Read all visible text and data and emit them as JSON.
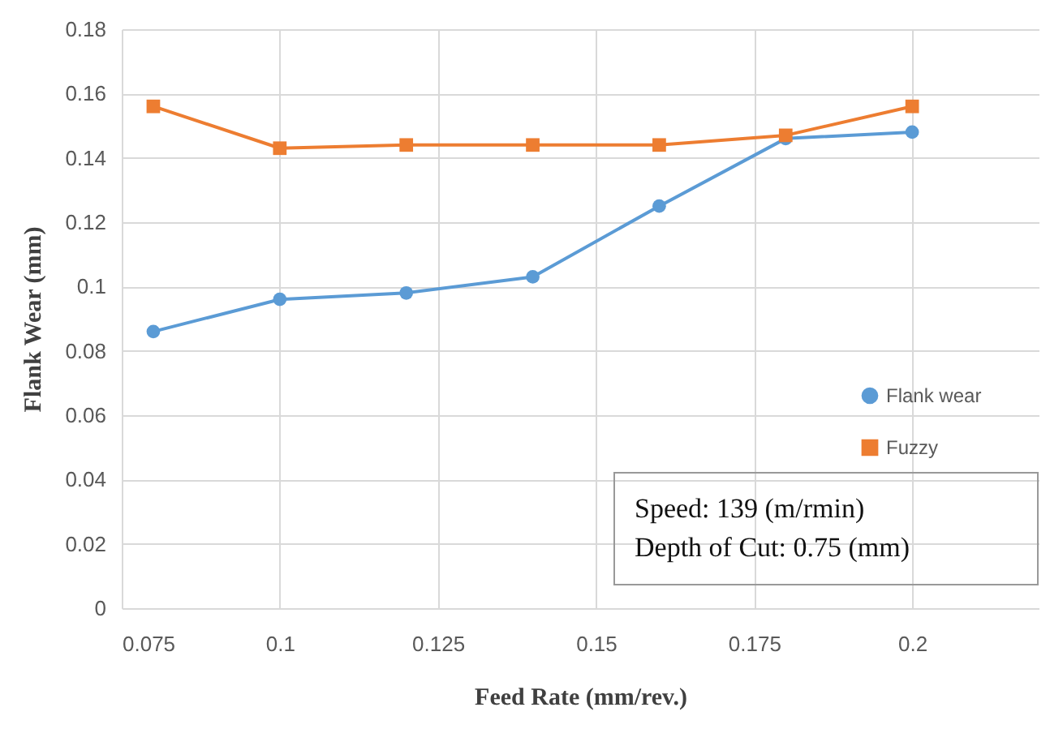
{
  "chart_data": {
    "type": "line",
    "xlabel": "Feed Rate (mm/rev.)",
    "ylabel": "Flank Wear (mm)",
    "x": [
      0.08,
      0.1,
      0.12,
      0.14,
      0.16,
      0.18,
      0.2
    ],
    "series": [
      {
        "name": "Flank wear",
        "color": "#5b9bd5",
        "marker": "circle",
        "values": [
          0.086,
          0.096,
          0.098,
          0.103,
          0.125,
          0.146,
          0.148
        ]
      },
      {
        "name": "Fuzzy",
        "color": "#ed7d31",
        "marker": "square",
        "values": [
          0.156,
          0.143,
          0.144,
          0.144,
          0.144,
          0.147,
          0.156
        ]
      }
    ],
    "xlim": [
      0.075,
      0.22
    ],
    "xticks": [
      0.075,
      0.1,
      0.125,
      0.15,
      0.175,
      0.2
    ],
    "ylim": [
      0,
      0.18
    ],
    "yticks": [
      0,
      0.02,
      0.04,
      0.06,
      0.08,
      0.1,
      0.12,
      0.14,
      0.16,
      0.18
    ],
    "grid": true,
    "legend": "right",
    "annotations": [
      "Speed: 139 (m/rmin)",
      "Depth of Cut: 0.75 (mm)"
    ]
  }
}
